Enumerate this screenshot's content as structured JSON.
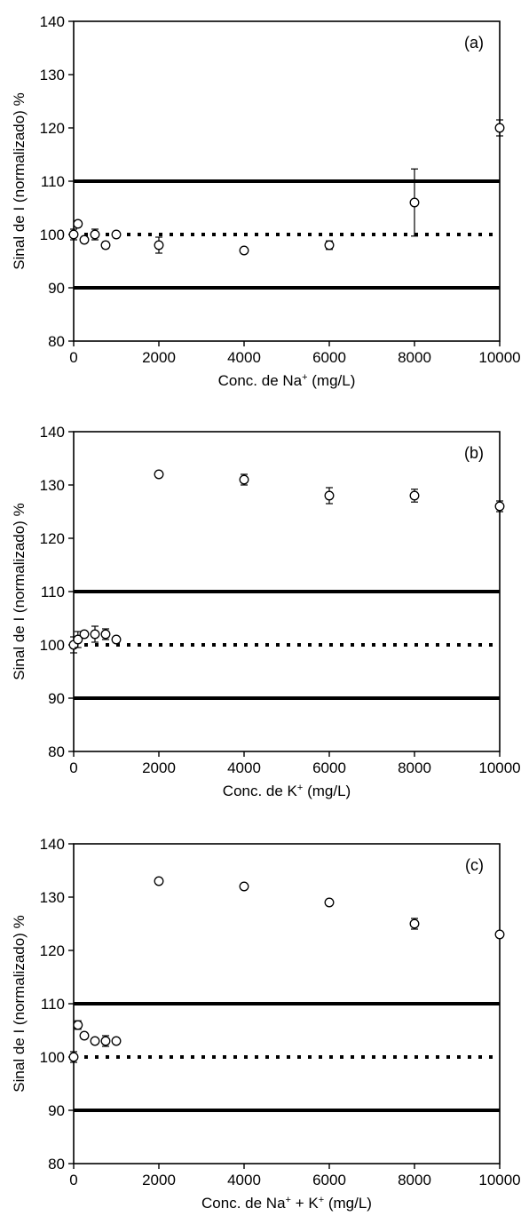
{
  "chart_data": [
    {
      "type": "scatter",
      "panel_label": "(a)",
      "xlabel": "Conc. de Na",
      "xlabel_sup": "+",
      "xlabel_suffix": " (mg/L)",
      "ylabel": "Sinal de I (normalizado) %",
      "xlim": [
        0,
        10000
      ],
      "ylim": [
        80,
        140
      ],
      "xticks": [
        0,
        2000,
        4000,
        6000,
        8000,
        10000
      ],
      "yticks": [
        80,
        90,
        100,
        110,
        120,
        130,
        140
      ],
      "grid": false,
      "reference_lines": {
        "solid": [
          90,
          110
        ],
        "dotted": [
          100
        ]
      },
      "points": [
        {
          "x": 0,
          "y": 100,
          "err": 1.0
        },
        {
          "x": 100,
          "y": 102,
          "err": 0.5
        },
        {
          "x": 250,
          "y": 99,
          "err": 0.3
        },
        {
          "x": 500,
          "y": 100,
          "err": 1.0
        },
        {
          "x": 750,
          "y": 98,
          "err": 0.6
        },
        {
          "x": 1000,
          "y": 100,
          "err": 0.4
        },
        {
          "x": 2000,
          "y": 98,
          "err": 1.5
        },
        {
          "x": 4000,
          "y": 97,
          "err": 0.3
        },
        {
          "x": 6000,
          "y": 98,
          "err": 0.8
        },
        {
          "x": 8000,
          "y": 106,
          "err": 6.3
        },
        {
          "x": 10000,
          "y": 120,
          "err": 1.5
        }
      ]
    },
    {
      "type": "scatter",
      "panel_label": "(b)",
      "xlabel": "Conc. de K",
      "xlabel_sup": "+",
      "xlabel_suffix": " (mg/L)",
      "ylabel": "Sinal de I (normalizado) %",
      "xlim": [
        0,
        10000
      ],
      "ylim": [
        80,
        140
      ],
      "xticks": [
        0,
        2000,
        4000,
        6000,
        8000,
        10000
      ],
      "yticks": [
        80,
        90,
        100,
        110,
        120,
        130,
        140
      ],
      "grid": false,
      "reference_lines": {
        "solid": [
          90,
          110
        ],
        "dotted": [
          100
        ]
      },
      "points": [
        {
          "x": 0,
          "y": 100,
          "err": 1.5
        },
        {
          "x": 100,
          "y": 101,
          "err": 1.5
        },
        {
          "x": 250,
          "y": 102,
          "err": 0.5
        },
        {
          "x": 500,
          "y": 102,
          "err": 1.5
        },
        {
          "x": 750,
          "y": 102,
          "err": 1.0
        },
        {
          "x": 1000,
          "y": 101,
          "err": 0.5
        },
        {
          "x": 2000,
          "y": 132,
          "err": 0.3
        },
        {
          "x": 4000,
          "y": 131,
          "err": 1.0
        },
        {
          "x": 6000,
          "y": 128,
          "err": 1.5
        },
        {
          "x": 8000,
          "y": 128,
          "err": 1.2
        },
        {
          "x": 10000,
          "y": 126,
          "err": 1.0
        }
      ]
    },
    {
      "type": "scatter",
      "panel_label": "(c)",
      "xlabel": "Conc. de Na",
      "xlabel_sup": "+",
      "xlabel_mid": " + K",
      "xlabel_sup2": "+",
      "xlabel_suffix": " (mg/L)",
      "ylabel": "Sinal de I (normalizado) %",
      "xlim": [
        0,
        10000
      ],
      "ylim": [
        80,
        140
      ],
      "xticks": [
        0,
        2000,
        4000,
        6000,
        8000,
        10000
      ],
      "yticks": [
        80,
        90,
        100,
        110,
        120,
        130,
        140
      ],
      "grid": false,
      "reference_lines": {
        "solid": [
          90,
          110
        ],
        "dotted": [
          100
        ]
      },
      "points": [
        {
          "x": 0,
          "y": 100,
          "err": 1.0
        },
        {
          "x": 100,
          "y": 106,
          "err": 0.8
        },
        {
          "x": 250,
          "y": 104,
          "err": 0.3
        },
        {
          "x": 500,
          "y": 103,
          "err": 0.5
        },
        {
          "x": 750,
          "y": 103,
          "err": 1.0
        },
        {
          "x": 1000,
          "y": 103,
          "err": 0.5
        },
        {
          "x": 2000,
          "y": 133,
          "err": 0.5
        },
        {
          "x": 4000,
          "y": 132,
          "err": 0.5
        },
        {
          "x": 6000,
          "y": 129,
          "err": 0.3
        },
        {
          "x": 8000,
          "y": 125,
          "err": 1.0
        },
        {
          "x": 10000,
          "y": 123,
          "err": 0.5
        }
      ]
    }
  ]
}
